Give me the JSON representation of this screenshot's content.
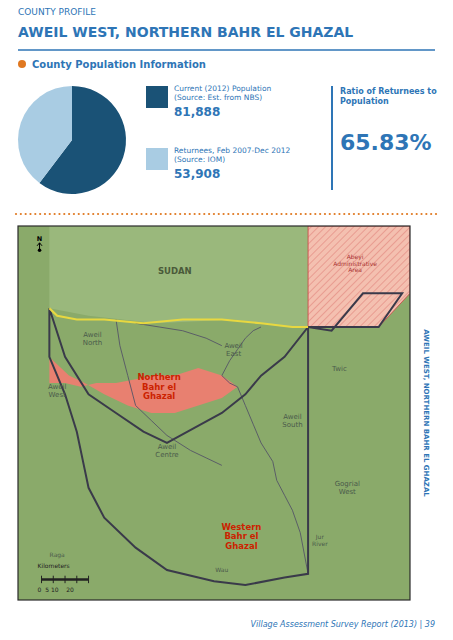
{
  "chart_data": {
    "type": "pie",
    "subtitle": "COUNTY PROFILE",
    "title": "AWEIL WEST, NORTHERN BAHR EL GHAZAL",
    "categories": [
      "Current (2012) Population\n(Source: Est. from NBS)",
      "Returnees, Feb 2007-Dec 2012\n(Source: IOM)"
    ],
    "values": [
      81888,
      53908
    ],
    "value_labels": [
      "81,888",
      "53,908"
    ],
    "data_labels": true,
    "colors": [
      "#1a5276",
      "#a9cce3"
    ],
    "annotations": [
      "County Population Information",
      "Ratio of Returnees to\nPopulation",
      "65.83%",
      "AWEIL WEST, NORTHERN BAHR EL GHAZAL",
      "Village Assessment Survey Report (2013) | 39",
      "SUDAN",
      "Abeyi\nAdministrative\nArea",
      "Aweil\nNorth",
      "Aweil\nEast",
      "Twic",
      "Aweil\nWest",
      "Northern\nBahr el\nGhazal",
      "Aweil\nSouth",
      "Aweil\nCentre",
      "Gogrial\nWest",
      "Western\nBahr el\nGhazal",
      "Raga",
      "Jur\nRiver",
      "Wau",
      "N",
      "Kilometers",
      "0  5 10    20"
    ]
  }
}
